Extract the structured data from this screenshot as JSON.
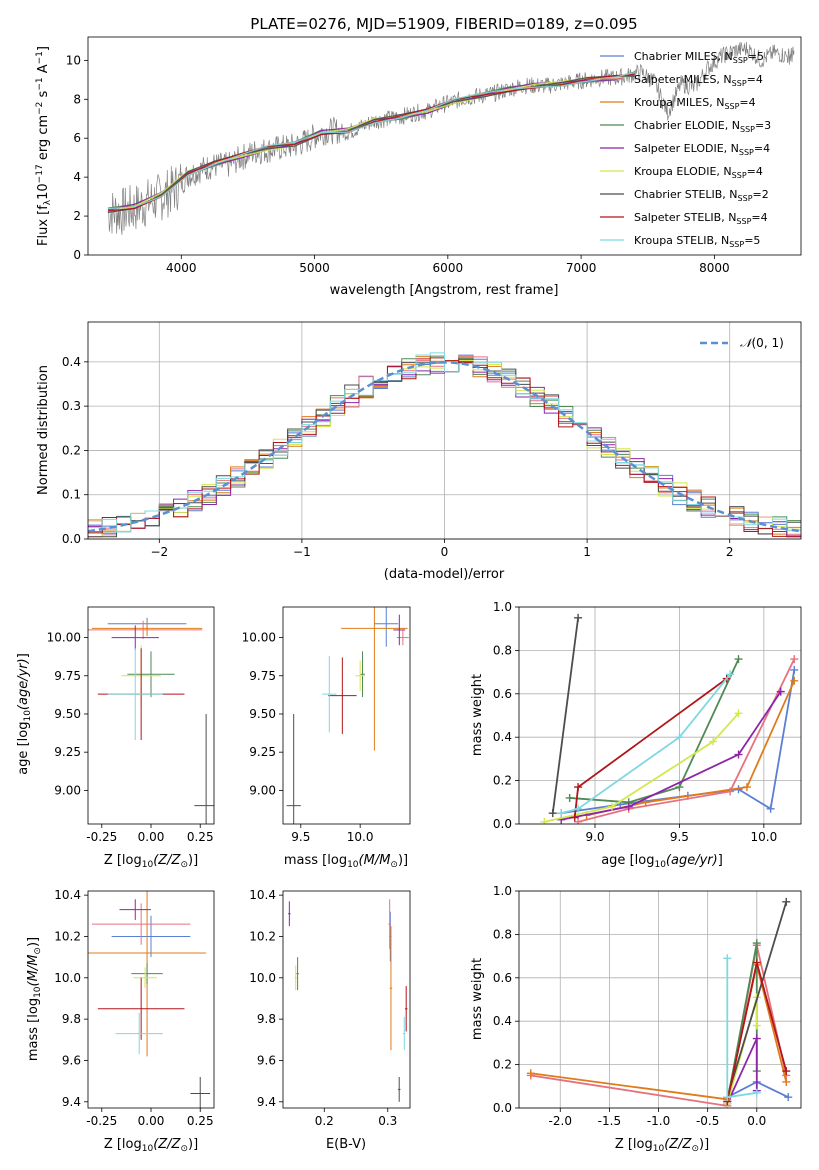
{
  "figure": {
    "title": "PLATE=0276, MJD=51909, FIBERID=0189, z=0.095"
  },
  "series_styles": [
    {
      "label": "Chabrier MILES, N",
      "nssp": "=5",
      "color": "#5b7fd4"
    },
    {
      "label": "Salpeter MILES, N",
      "nssp": "=4",
      "color": "#e7727f"
    },
    {
      "label": "Kroupa MILES, N",
      "nssp": "=4",
      "color": "#e07b1a"
    },
    {
      "label": "Chabrier ELODIE, N",
      "nssp": "=3",
      "color": "#4f8a56"
    },
    {
      "label": "Salpeter ELODIE, N",
      "nssp": "=4",
      "color": "#8e24aa"
    },
    {
      "label": "Kroupa ELODIE, N",
      "nssp": "=4",
      "color": "#d4e74d"
    },
    {
      "label": "Chabrier STELIB, N",
      "nssp": "=2",
      "color": "#4d4d4d"
    },
    {
      "label": "Salpeter STELIB, N",
      "nssp": "=4",
      "color": "#b0161a"
    },
    {
      "label": "Kroupa STELIB, N",
      "nssp": "=5",
      "color": "#7fd8e0"
    }
  ],
  "chart_data": [
    {
      "id": "spectrum",
      "type": "line",
      "xlabel": "wavelength [Angstrom, rest frame]",
      "ylabel": "Flux [f",
      "xlim": [
        3300,
        8650
      ],
      "ylim": [
        0,
        11.2
      ],
      "xticks": [
        4000,
        5000,
        6000,
        7000,
        8000
      ],
      "yticks": [
        0,
        2,
        4,
        6,
        8,
        10
      ],
      "data_color": "#808080",
      "data_points": [
        [
          3450,
          2.2
        ],
        [
          3550,
          2.2
        ],
        [
          3650,
          2.4
        ],
        [
          3750,
          2.7
        ],
        [
          3850,
          3.0
        ],
        [
          3950,
          3.4
        ],
        [
          4050,
          4.1
        ],
        [
          4150,
          4.4
        ],
        [
          4250,
          4.6
        ],
        [
          4350,
          4.6
        ],
        [
          4450,
          5.0
        ],
        [
          4550,
          5.3
        ],
        [
          4650,
          5.4
        ],
        [
          4750,
          5.5
        ],
        [
          4850,
          5.6
        ],
        [
          4950,
          5.9
        ],
        [
          5050,
          6.3
        ],
        [
          5150,
          6.4
        ],
        [
          5250,
          6.3
        ],
        [
          5350,
          6.6
        ],
        [
          5450,
          6.9
        ],
        [
          5550,
          7.0
        ],
        [
          5650,
          7.1
        ],
        [
          5750,
          7.3
        ],
        [
          5850,
          7.4
        ],
        [
          5950,
          7.7
        ],
        [
          6050,
          7.9
        ],
        [
          6150,
          8.1
        ],
        [
          6250,
          8.2
        ],
        [
          6350,
          8.3
        ],
        [
          6450,
          8.5
        ],
        [
          6550,
          8.7
        ],
        [
          6650,
          8.7
        ],
        [
          6750,
          8.7
        ],
        [
          6850,
          8.8
        ],
        [
          6950,
          8.9
        ],
        [
          7050,
          9.0
        ],
        [
          7150,
          9.1
        ],
        [
          7250,
          9.1
        ],
        [
          7350,
          9.2
        ],
        [
          7450,
          9.4
        ],
        [
          7550,
          8.9
        ],
        [
          7650,
          7.3
        ],
        [
          7750,
          8.8
        ],
        [
          7850,
          8.6
        ],
        [
          7950,
          9.6
        ],
        [
          8050,
          10.2
        ],
        [
          8150,
          10.5
        ],
        [
          8250,
          10.6
        ],
        [
          8350,
          10.0
        ],
        [
          8450,
          10.4
        ],
        [
          8550,
          10.2
        ],
        [
          8600,
          10.3
        ]
      ],
      "model_points": [
        [
          3450,
          2.3
        ],
        [
          3650,
          2.5
        ],
        [
          3850,
          3.1
        ],
        [
          4050,
          4.2
        ],
        [
          4250,
          4.7
        ],
        [
          4450,
          5.1
        ],
        [
          4650,
          5.5
        ],
        [
          4850,
          5.7
        ],
        [
          5050,
          6.3
        ],
        [
          5250,
          6.4
        ],
        [
          5450,
          6.9
        ],
        [
          5650,
          7.1
        ],
        [
          5850,
          7.4
        ],
        [
          6050,
          7.9
        ],
        [
          6250,
          8.2
        ],
        [
          6450,
          8.5
        ],
        [
          6650,
          8.7
        ],
        [
          6850,
          8.8
        ],
        [
          7050,
          9.0
        ],
        [
          7250,
          9.1
        ],
        [
          7400,
          9.3
        ]
      ],
      "legend": "upper right"
    },
    {
      "id": "residuals",
      "type": "line",
      "xlabel": "(data-model)/error",
      "ylabel": "Normed distribution",
      "xlim": [
        -2.5,
        2.5
      ],
      "ylim": [
        0,
        0.49
      ],
      "xticks": [
        -2,
        -1,
        0,
        1,
        2
      ],
      "yticks": [
        0.0,
        0.1,
        0.2,
        0.3,
        0.4
      ],
      "gaussian": {
        "label": "(0, 1)",
        "color": "#5b8fd4",
        "mean": 0,
        "sigma": 1
      },
      "legend": "upper right",
      "grid": true
    },
    {
      "id": "age_Z",
      "type": "scatter",
      "xlabel": "Z [log",
      "ylabel": "age  [log",
      "xlim": [
        -0.32,
        0.32
      ],
      "ylim": [
        8.78,
        10.2
      ],
      "xticks": [
        -0.25,
        0.0,
        0.25
      ],
      "yticks": [
        9.0,
        9.25,
        9.5,
        9.75,
        10.0
      ],
      "tick_labels_x": [
        "-0.25",
        "0.00",
        "0.25"
      ],
      "tick_labels_y": [
        "9.00",
        "9.25",
        "9.50",
        "9.75",
        "10.00"
      ],
      "points": [
        {
          "s": 0,
          "x": -0.02,
          "y": 10.09,
          "xe": 0.2,
          "ye": 0.04
        },
        {
          "s": 1,
          "x": -0.04,
          "y": 10.05,
          "xe": 0.3,
          "ye": 0.06
        },
        {
          "s": 2,
          "x": -0.02,
          "y": 10.06,
          "xe": 0.28,
          "ye": 0.05
        },
        {
          "s": 3,
          "x": 0.0,
          "y": 9.76,
          "xe": 0.12,
          "ye": 0.15
        },
        {
          "s": 4,
          "x": -0.08,
          "y": 10.0,
          "xe": 0.12,
          "ye": 0.08
        },
        {
          "s": 5,
          "x": -0.05,
          "y": 9.75,
          "xe": 0.1,
          "ye": 0.2
        },
        {
          "s": 6,
          "x": 0.28,
          "y": 8.9,
          "xe": 0.06,
          "ye": 0.6
        },
        {
          "s": 7,
          "x": -0.05,
          "y": 9.63,
          "xe": 0.22,
          "ye": 0.3
        },
        {
          "s": 8,
          "x": -0.08,
          "y": 9.63,
          "xe": 0.14,
          "ye": 0.3
        }
      ]
    },
    {
      "id": "age_mass",
      "type": "scatter",
      "xlabel": "mass [log",
      "ylabel": "",
      "xlim": [
        9.35,
        10.42
      ],
      "ylim": [
        8.78,
        10.2
      ],
      "xticks": [
        9.5,
        10.0
      ],
      "yticks": [
        9.0,
        9.25,
        9.5,
        9.75,
        10.0
      ],
      "tick_labels_x": [
        "9.5",
        "10.0"
      ],
      "tick_labels_y": [
        "9.00",
        "9.25",
        "9.50",
        "9.75",
        "10.00"
      ],
      "points": [
        {
          "s": 0,
          "x": 10.22,
          "y": 10.09,
          "xe": 0.1,
          "ye": 0.15
        },
        {
          "s": 1,
          "x": 10.36,
          "y": 10.0,
          "xe": 0.05,
          "ye": 0.05
        },
        {
          "s": 2,
          "x": 10.12,
          "y": 10.06,
          "xe": 0.28,
          "ye": 0.8
        },
        {
          "s": 3,
          "x": 10.02,
          "y": 9.76,
          "xe": 0.02,
          "ye": 0.15
        },
        {
          "s": 4,
          "x": 10.33,
          "y": 10.05,
          "xe": 0.05,
          "ye": 0.1
        },
        {
          "s": 5,
          "x": 10.0,
          "y": 9.75,
          "xe": 0.04,
          "ye": 0.1
        },
        {
          "s": 6,
          "x": 9.44,
          "y": 8.9,
          "xe": 0.06,
          "ye": 0.6
        },
        {
          "s": 7,
          "x": 9.85,
          "y": 9.62,
          "xe": 0.12,
          "ye": 0.25
        },
        {
          "s": 8,
          "x": 9.74,
          "y": 9.63,
          "xe": 0.06,
          "ye": 0.25
        }
      ]
    },
    {
      "id": "weight_age",
      "type": "line",
      "xlabel": "age  [log",
      "ylabel": "mass weight",
      "xlim": [
        8.55,
        10.22
      ],
      "ylim": [
        0,
        1.0
      ],
      "xticks": [
        9.0,
        9.5,
        10.0
      ],
      "yticks": [
        0.0,
        0.2,
        0.4,
        0.6,
        0.8,
        1.0
      ],
      "tick_labels_x": [
        "9.0",
        "9.5",
        "10.0"
      ],
      "tick_labels_y": [
        "0.0",
        "0.2",
        "0.4",
        "0.6",
        "0.8",
        "1.0"
      ],
      "grid": true,
      "lines": [
        {
          "s": 0,
          "pts": [
            [
              8.8,
              0.05
            ],
            [
              9.15,
              0.09
            ],
            [
              9.55,
              0.13
            ],
            [
              9.85,
              0.16
            ],
            [
              10.04,
              0.07
            ],
            [
              10.18,
              0.71
            ]
          ]
        },
        {
          "s": 1,
          "pts": [
            [
              8.9,
              0.01
            ],
            [
              9.2,
              0.07
            ],
            [
              9.8,
              0.15
            ],
            [
              10.18,
              0.76
            ]
          ]
        },
        {
          "s": 2,
          "pts": [
            [
              8.95,
              0.04
            ],
            [
              9.3,
              0.1
            ],
            [
              9.9,
              0.17
            ],
            [
              10.18,
              0.66
            ]
          ]
        },
        {
          "s": 3,
          "pts": [
            [
              8.85,
              0.12
            ],
            [
              9.2,
              0.1
            ],
            [
              9.5,
              0.17
            ],
            [
              9.85,
              0.76
            ]
          ]
        },
        {
          "s": 4,
          "pts": [
            [
              8.8,
              0.02
            ],
            [
              9.2,
              0.08
            ],
            [
              9.85,
              0.32
            ],
            [
              10.1,
              0.61
            ]
          ]
        },
        {
          "s": 5,
          "pts": [
            [
              8.7,
              0.01
            ],
            [
              9.1,
              0.08
            ],
            [
              9.7,
              0.38
            ],
            [
              9.85,
              0.51
            ]
          ]
        },
        {
          "s": 6,
          "pts": [
            [
              8.75,
              0.05
            ],
            [
              8.9,
              0.95
            ]
          ]
        },
        {
          "s": 7,
          "pts": [
            [
              8.88,
              0.03
            ],
            [
              8.9,
              0.17
            ],
            [
              9.78,
              0.67
            ]
          ]
        },
        {
          "s": 8,
          "pts": [
            [
              8.8,
              0.05
            ],
            [
              8.9,
              0.07
            ],
            [
              9.5,
              0.4
            ],
            [
              9.8,
              0.69
            ]
          ]
        }
      ]
    },
    {
      "id": "mass_Z",
      "type": "scatter",
      "xlabel": "Z [log",
      "ylabel": "mass [log",
      "xlim": [
        -0.32,
        0.32
      ],
      "ylim": [
        9.37,
        10.42
      ],
      "xticks": [
        -0.25,
        0.0,
        0.25
      ],
      "yticks": [
        9.4,
        9.6,
        9.8,
        10.0,
        10.2,
        10.4
      ],
      "tick_labels_x": [
        "-0.25",
        "0.00",
        "0.25"
      ],
      "tick_labels_y": [
        "9.4",
        "9.6",
        "9.8",
        "10.0",
        "10.2",
        "10.4"
      ],
      "points": [
        {
          "s": 0,
          "x": 0.0,
          "y": 10.2,
          "xe": 0.2,
          "ye": 0.1
        },
        {
          "s": 1,
          "x": -0.05,
          "y": 10.26,
          "xe": 0.25,
          "ye": 0.1
        },
        {
          "s": 2,
          "x": -0.02,
          "y": 10.12,
          "xe": 0.3,
          "ye": 0.5
        },
        {
          "s": 3,
          "x": -0.02,
          "y": 10.02,
          "xe": 0.08,
          "ye": 0.05
        },
        {
          "s": 4,
          "x": -0.08,
          "y": 10.33,
          "xe": 0.08,
          "ye": 0.05
        },
        {
          "s": 5,
          "x": -0.03,
          "y": 10.0,
          "xe": 0.06,
          "ye": 0.05
        },
        {
          "s": 6,
          "x": 0.25,
          "y": 9.44,
          "xe": 0.05,
          "ye": 0.08
        },
        {
          "s": 7,
          "x": -0.05,
          "y": 9.85,
          "xe": 0.22,
          "ye": 0.15
        },
        {
          "s": 8,
          "x": -0.06,
          "y": 9.73,
          "xe": 0.12,
          "ye": 0.1
        }
      ]
    },
    {
      "id": "mass_ebv",
      "type": "scatter",
      "xlabel": "E(B-V)",
      "ylabel": "",
      "xlim": [
        0.135,
        0.335
      ],
      "ylim": [
        9.37,
        10.42
      ],
      "xticks": [
        0.2,
        0.3
      ],
      "yticks": [
        9.4,
        9.6,
        9.8,
        10.0,
        10.2,
        10.4
      ],
      "tick_labels_x": [
        "0.2",
        "0.3"
      ],
      "tick_labels_y": [
        "9.4",
        "9.6",
        "9.8",
        "10.0",
        "10.2",
        "10.4"
      ],
      "points": [
        {
          "s": 0,
          "x": 0.304,
          "y": 10.2,
          "xe": 0.002,
          "ye": 0.12
        },
        {
          "s": 1,
          "x": 0.303,
          "y": 10.26,
          "xe": 0.002,
          "ye": 0.12
        },
        {
          "s": 2,
          "x": 0.305,
          "y": 9.95,
          "xe": 0.002,
          "ye": 0.3
        },
        {
          "s": 3,
          "x": 0.158,
          "y": 10.02,
          "xe": 0.002,
          "ye": 0.08
        },
        {
          "s": 4,
          "x": 0.145,
          "y": 10.31,
          "xe": 0.002,
          "ye": 0.06
        },
        {
          "s": 5,
          "x": 0.155,
          "y": 10.0,
          "xe": 0.002,
          "ye": 0.06
        },
        {
          "s": 6,
          "x": 0.318,
          "y": 9.46,
          "xe": 0.002,
          "ye": 0.06
        },
        {
          "s": 7,
          "x": 0.329,
          "y": 9.85,
          "xe": 0.002,
          "ye": 0.11
        },
        {
          "s": 8,
          "x": 0.326,
          "y": 9.73,
          "xe": 0.002,
          "ye": 0.08
        }
      ]
    },
    {
      "id": "weight_Z",
      "type": "line",
      "xlabel": "Z [log",
      "ylabel": "mass weight",
      "xlim": [
        -2.42,
        0.45
      ],
      "ylim": [
        0,
        1.0
      ],
      "xticks": [
        -2.0,
        -1.5,
        -1.0,
        -0.5,
        0.0
      ],
      "yticks": [
        0.0,
        0.2,
        0.4,
        0.6,
        0.8,
        1.0
      ],
      "tick_labels_x": [
        "-2.0",
        "-1.5",
        "-1.0",
        "-0.5",
        "0.0"
      ],
      "tick_labels_y": [
        "0.0",
        "0.2",
        "0.4",
        "0.6",
        "0.8",
        "1.0"
      ],
      "grid": true,
      "lines": [
        {
          "s": 0,
          "pts": [
            [
              -0.3,
              0.05
            ],
            [
              0.0,
              0.12
            ],
            [
              0.32,
              0.05
            ]
          ]
        },
        {
          "s": 1,
          "pts": [
            [
              -2.3,
              0.15
            ],
            [
              -0.3,
              0.01
            ],
            [
              0.0,
              0.75
            ],
            [
              0.3,
              0.15
            ]
          ]
        },
        {
          "s": 2,
          "pts": [
            [
              -2.3,
              0.16
            ],
            [
              -0.3,
              0.04
            ],
            [
              0.0,
              0.66
            ],
            [
              0.3,
              0.12
            ]
          ]
        },
        {
          "s": 3,
          "pts": [
            [
              -0.3,
              0.03
            ],
            [
              0.0,
              0.76
            ],
            [
              0.0,
              0.17
            ]
          ]
        },
        {
          "s": 4,
          "pts": [
            [
              -0.3,
              0.02
            ],
            [
              0.0,
              0.32
            ],
            [
              0.0,
              0.08
            ]
          ]
        },
        {
          "s": 5,
          "pts": [
            [
              -0.3,
              0.02
            ],
            [
              0.0,
              0.51
            ],
            [
              0.0,
              0.38
            ]
          ]
        },
        {
          "s": 6,
          "pts": [
            [
              -0.3,
              0.05
            ],
            [
              0.3,
              0.95
            ]
          ]
        },
        {
          "s": 7,
          "pts": [
            [
              -0.3,
              0.03
            ],
            [
              0.0,
              0.67
            ],
            [
              0.3,
              0.17
            ]
          ]
        },
        {
          "s": 8,
          "pts": [
            [
              -0.3,
              0.69
            ],
            [
              -0.3,
              0.05
            ],
            [
              0.0,
              0.07
            ]
          ]
        }
      ]
    }
  ]
}
